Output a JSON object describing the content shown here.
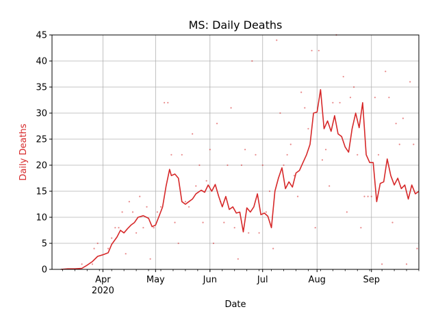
{
  "chart_data": {
    "type": "line",
    "title": "MS: Daily Deaths",
    "xlabel": "Date",
    "ylabel": "Daily Deaths",
    "ylabel_color": "#d62728",
    "line_color": "#d62728",
    "grid": true,
    "xlim": [
      "2020-03-03",
      "2020-09-28"
    ],
    "ylim": [
      0,
      45
    ],
    "yticks": [
      0,
      5,
      10,
      15,
      20,
      25,
      30,
      35,
      40,
      45
    ],
    "xticks": [
      {
        "date": "2020-04-01",
        "label": "Apr",
        "sublabel": "2020"
      },
      {
        "date": "2020-05-01",
        "label": "May",
        "sublabel": ""
      },
      {
        "date": "2020-06-01",
        "label": "Jun",
        "sublabel": ""
      },
      {
        "date": "2020-07-01",
        "label": "Jul",
        "sublabel": ""
      },
      {
        "date": "2020-08-01",
        "label": "Aug",
        "sublabel": ""
      },
      {
        "date": "2020-09-01",
        "label": "Sep",
        "sublabel": ""
      }
    ],
    "series": [
      {
        "name": "",
        "kind": "line",
        "points": [
          [
            "2020-03-08",
            0
          ],
          [
            "2020-03-12",
            0.1
          ],
          [
            "2020-03-16",
            0.1
          ],
          [
            "2020-03-20",
            0.2
          ],
          [
            "2020-03-23",
            0.8
          ],
          [
            "2020-03-26",
            1.5
          ],
          [
            "2020-03-29",
            2.5
          ],
          [
            "2020-04-01",
            2.8
          ],
          [
            "2020-04-04",
            3.2
          ],
          [
            "2020-04-06",
            4.8
          ],
          [
            "2020-04-09",
            6.2
          ],
          [
            "2020-04-11",
            7.5
          ],
          [
            "2020-04-13",
            7.0
          ],
          [
            "2020-04-15",
            7.8
          ],
          [
            "2020-04-17",
            8.5
          ],
          [
            "2020-04-19",
            9.0
          ],
          [
            "2020-04-21",
            10.0
          ],
          [
            "2020-04-24",
            10.3
          ],
          [
            "2020-04-27",
            9.8
          ],
          [
            "2020-04-29",
            8.2
          ],
          [
            "2020-05-01",
            8.5
          ],
          [
            "2020-05-03",
            10.2
          ],
          [
            "2020-05-05",
            12.0
          ],
          [
            "2020-05-07",
            16.0
          ],
          [
            "2020-05-09",
            19.2
          ],
          [
            "2020-05-10",
            18.0
          ],
          [
            "2020-05-12",
            18.3
          ],
          [
            "2020-05-14",
            17.5
          ],
          [
            "2020-05-16",
            13.0
          ],
          [
            "2020-05-18",
            12.5
          ],
          [
            "2020-05-20",
            13.0
          ],
          [
            "2020-05-22",
            13.5
          ],
          [
            "2020-05-24",
            14.5
          ],
          [
            "2020-05-27",
            15.2
          ],
          [
            "2020-05-29",
            14.8
          ],
          [
            "2020-05-31",
            16.2
          ],
          [
            "2020-06-02",
            15.0
          ],
          [
            "2020-06-04",
            16.3
          ],
          [
            "2020-06-06",
            14.0
          ],
          [
            "2020-06-08",
            12.0
          ],
          [
            "2020-06-10",
            14.0
          ],
          [
            "2020-06-12",
            11.5
          ],
          [
            "2020-06-14",
            12.0
          ],
          [
            "2020-06-16",
            10.8
          ],
          [
            "2020-06-18",
            11.0
          ],
          [
            "2020-06-20",
            7.2
          ],
          [
            "2020-06-22",
            11.8
          ],
          [
            "2020-06-24",
            11.0
          ],
          [
            "2020-06-26",
            12.0
          ],
          [
            "2020-06-28",
            14.5
          ],
          [
            "2020-06-30",
            10.5
          ],
          [
            "2020-07-02",
            10.8
          ],
          [
            "2020-07-04",
            10.2
          ],
          [
            "2020-07-06",
            8.0
          ],
          [
            "2020-07-08",
            15.0
          ],
          [
            "2020-07-10",
            17.5
          ],
          [
            "2020-07-12",
            19.5
          ],
          [
            "2020-07-14",
            15.5
          ],
          [
            "2020-07-16",
            16.8
          ],
          [
            "2020-07-18",
            15.8
          ],
          [
            "2020-07-20",
            18.5
          ],
          [
            "2020-07-22",
            19.0
          ],
          [
            "2020-07-24",
            20.5
          ],
          [
            "2020-07-26",
            22.0
          ],
          [
            "2020-07-28",
            24.0
          ],
          [
            "2020-07-30",
            30.0
          ],
          [
            "2020-08-01",
            30.2
          ],
          [
            "2020-08-03",
            34.5
          ],
          [
            "2020-08-05",
            27.0
          ],
          [
            "2020-08-07",
            28.5
          ],
          [
            "2020-08-09",
            26.5
          ],
          [
            "2020-08-11",
            29.5
          ],
          [
            "2020-08-13",
            26.0
          ],
          [
            "2020-08-15",
            25.5
          ],
          [
            "2020-08-17",
            23.5
          ],
          [
            "2020-08-19",
            22.5
          ],
          [
            "2020-08-21",
            27.0
          ],
          [
            "2020-08-23",
            30.0
          ],
          [
            "2020-08-25",
            27.2
          ],
          [
            "2020-08-27",
            32.0
          ],
          [
            "2020-08-29",
            22.0
          ],
          [
            "2020-08-31",
            20.5
          ],
          [
            "2020-09-02",
            20.5
          ],
          [
            "2020-09-04",
            13.0
          ],
          [
            "2020-09-06",
            16.5
          ],
          [
            "2020-09-08",
            16.8
          ],
          [
            "2020-09-10",
            21.2
          ],
          [
            "2020-09-12",
            18.0
          ],
          [
            "2020-09-14",
            16.2
          ],
          [
            "2020-09-16",
            17.5
          ],
          [
            "2020-09-18",
            15.5
          ],
          [
            "2020-09-20",
            16.2
          ],
          [
            "2020-09-22",
            13.5
          ],
          [
            "2020-09-24",
            16.2
          ],
          [
            "2020-09-26",
            14.5
          ],
          [
            "2020-09-28",
            15.0
          ]
        ]
      },
      {
        "name": "",
        "kind": "scatter",
        "points": [
          [
            "2020-03-20",
            1
          ],
          [
            "2020-03-26",
            1
          ],
          [
            "2020-03-27",
            4
          ],
          [
            "2020-03-29",
            5
          ],
          [
            "2020-04-04",
            4
          ],
          [
            "2020-04-06",
            6
          ],
          [
            "2020-04-08",
            8
          ],
          [
            "2020-04-10",
            8
          ],
          [
            "2020-04-12",
            11
          ],
          [
            "2020-04-14",
            3
          ],
          [
            "2020-04-16",
            13
          ],
          [
            "2020-04-18",
            11
          ],
          [
            "2020-04-20",
            7
          ],
          [
            "2020-04-22",
            14
          ],
          [
            "2020-04-24",
            8
          ],
          [
            "2020-04-26",
            12
          ],
          [
            "2020-04-28",
            2
          ],
          [
            "2020-04-30",
            8
          ],
          [
            "2020-05-02",
            11
          ],
          [
            "2020-05-04",
            12
          ],
          [
            "2020-05-06",
            32
          ],
          [
            "2020-05-08",
            32
          ],
          [
            "2020-05-10",
            22
          ],
          [
            "2020-05-12",
            9
          ],
          [
            "2020-05-14",
            5
          ],
          [
            "2020-05-16",
            22
          ],
          [
            "2020-05-18",
            13
          ],
          [
            "2020-05-20",
            12
          ],
          [
            "2020-05-22",
            26
          ],
          [
            "2020-05-24",
            16
          ],
          [
            "2020-05-26",
            20
          ],
          [
            "2020-05-28",
            9
          ],
          [
            "2020-05-30",
            17
          ],
          [
            "2020-06-01",
            23
          ],
          [
            "2020-06-03",
            5
          ],
          [
            "2020-06-05",
            28
          ],
          [
            "2020-06-07",
            13
          ],
          [
            "2020-06-09",
            9
          ],
          [
            "2020-06-11",
            20
          ],
          [
            "2020-06-13",
            31
          ],
          [
            "2020-06-15",
            8
          ],
          [
            "2020-06-17",
            2
          ],
          [
            "2020-06-19",
            20
          ],
          [
            "2020-06-21",
            23
          ],
          [
            "2020-06-23",
            7
          ],
          [
            "2020-06-25",
            40
          ],
          [
            "2020-06-27",
            22
          ],
          [
            "2020-06-29",
            7
          ],
          [
            "2020-07-01",
            20
          ],
          [
            "2020-07-03",
            11
          ],
          [
            "2020-07-05",
            15
          ],
          [
            "2020-07-07",
            4
          ],
          [
            "2020-07-09",
            44
          ],
          [
            "2020-07-11",
            30
          ],
          [
            "2020-07-13",
            20
          ],
          [
            "2020-07-15",
            22
          ],
          [
            "2020-07-17",
            24
          ],
          [
            "2020-07-19",
            18
          ],
          [
            "2020-07-21",
            14
          ],
          [
            "2020-07-23",
            34
          ],
          [
            "2020-07-25",
            31
          ],
          [
            "2020-07-27",
            27
          ],
          [
            "2020-07-29",
            42
          ],
          [
            "2020-07-31",
            8
          ],
          [
            "2020-08-02",
            42
          ],
          [
            "2020-08-04",
            21
          ],
          [
            "2020-08-06",
            23
          ],
          [
            "2020-08-08",
            16
          ],
          [
            "2020-08-10",
            32
          ],
          [
            "2020-08-12",
            45
          ],
          [
            "2020-08-14",
            32
          ],
          [
            "2020-08-16",
            37
          ],
          [
            "2020-08-18",
            11
          ],
          [
            "2020-08-20",
            33
          ],
          [
            "2020-08-22",
            35
          ],
          [
            "2020-08-24",
            22
          ],
          [
            "2020-08-26",
            8
          ],
          [
            "2020-08-28",
            14
          ],
          [
            "2020-08-30",
            14
          ],
          [
            "2020-09-01",
            14
          ],
          [
            "2020-09-03",
            33
          ],
          [
            "2020-09-05",
            22
          ],
          [
            "2020-09-07",
            1
          ],
          [
            "2020-09-09",
            38
          ],
          [
            "2020-09-11",
            33
          ],
          [
            "2020-09-13",
            9
          ],
          [
            "2020-09-15",
            28
          ],
          [
            "2020-09-17",
            24
          ],
          [
            "2020-09-19",
            29
          ],
          [
            "2020-09-21",
            1
          ],
          [
            "2020-09-23",
            36
          ],
          [
            "2020-09-25",
            24
          ],
          [
            "2020-09-27",
            4
          ]
        ]
      }
    ]
  }
}
